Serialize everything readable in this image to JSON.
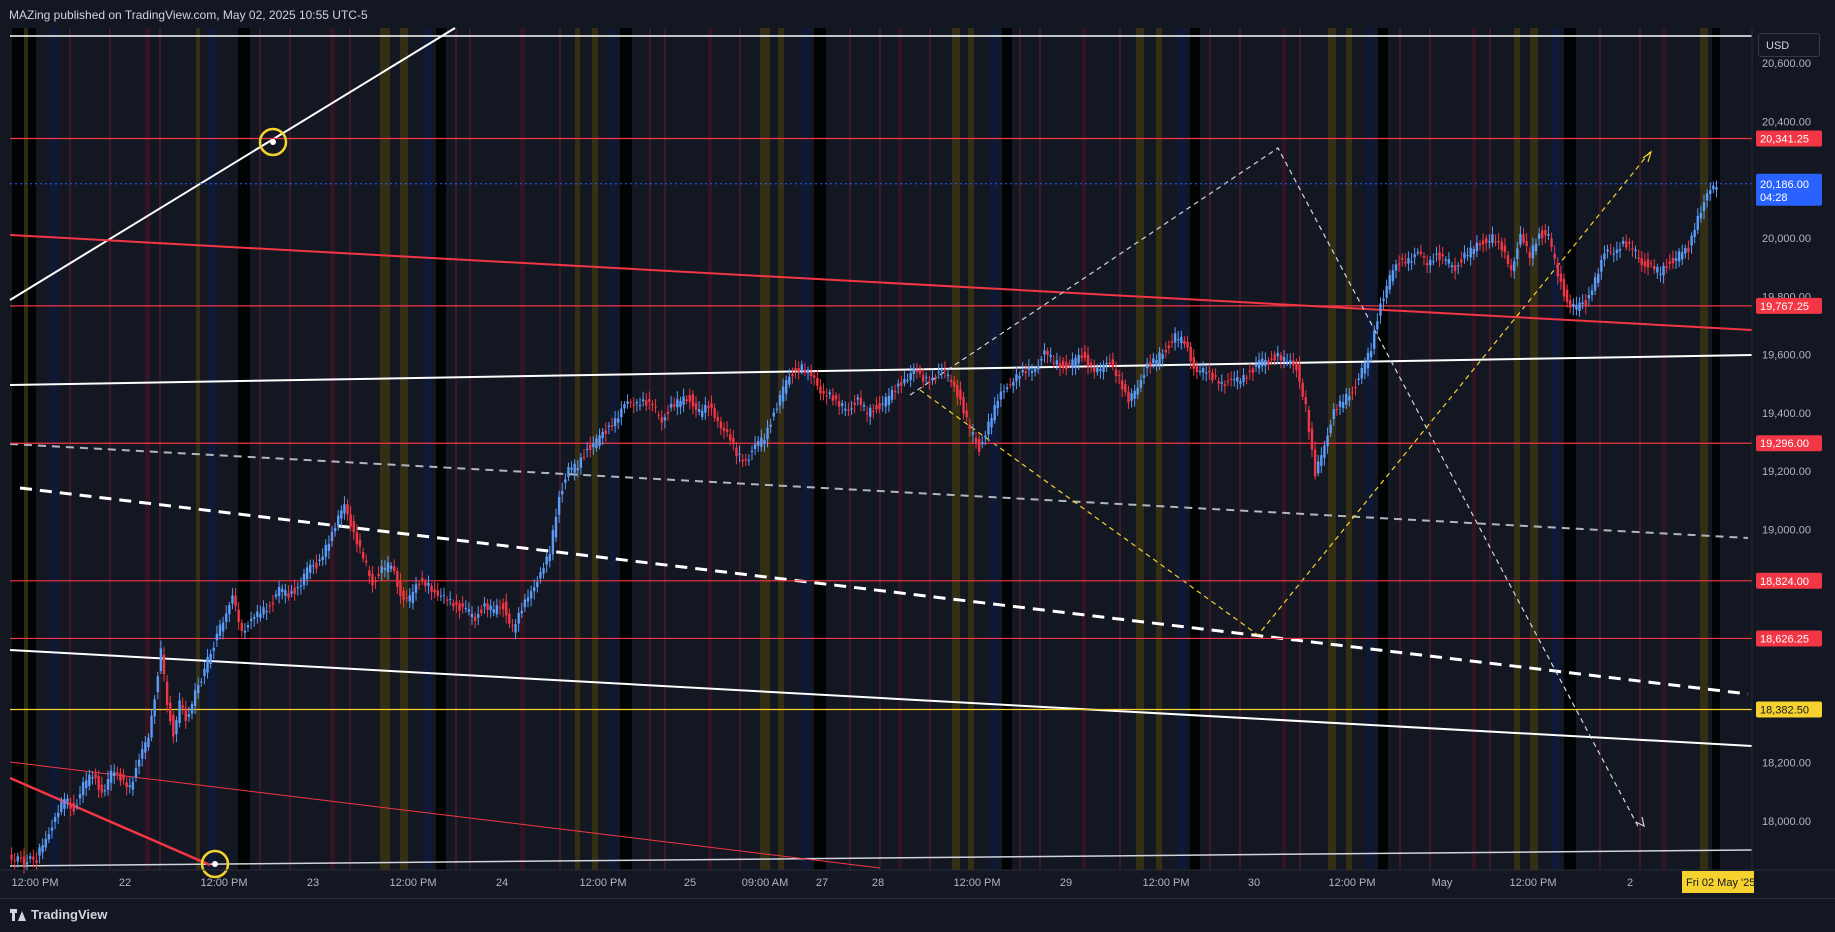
{
  "header": {
    "published": "MAZing published on TradingView.com, May 02, 2025 10:55 UTC-5"
  },
  "brand": {
    "name": "TradingView",
    "icon": "tradingview-logo-icon"
  },
  "price_axis": {
    "currency": "USD"
  },
  "colors": {
    "bg": "#131722",
    "up": "#5b9cf6",
    "down": "#f23645",
    "level_red": "#f23645",
    "level_yellow": "#f5d22d",
    "current": "#2962ff"
  },
  "chart_data": {
    "type": "candlestick",
    "symbol_note": "Futures price chart",
    "ylim": [
      17820,
      20740
    ],
    "y_ticks": [
      {
        "value": 18000,
        "label": "18,000.00"
      },
      {
        "value": 18200,
        "label": "18,200.00"
      },
      {
        "value": 19000,
        "label": "19,000.00"
      },
      {
        "value": 19200,
        "label": "19,200.00"
      },
      {
        "value": 19400,
        "label": "19,400.00"
      },
      {
        "value": 19600,
        "label": "19,600.00"
      },
      {
        "value": 19800,
        "label": "19,800.00"
      },
      {
        "value": 20000,
        "label": "20,000.00"
      },
      {
        "value": 20400,
        "label": "20,400.00"
      },
      {
        "value": 20600,
        "label": "20,600.00"
      }
    ],
    "x_ticks": [
      "12:00 PM",
      "22",
      "12:00 PM",
      "23",
      "12:00 PM",
      "24",
      "12:00 PM",
      "25",
      "09:00 AM",
      "27",
      "28",
      "12:00 PM",
      "29",
      "12:00 PM",
      "30",
      "12:00 PM",
      "May",
      "12:00 PM",
      "2"
    ],
    "time_cursor_label": "Fri 02 May '25",
    "levels": [
      {
        "value": 20341.25,
        "label": "20,341.25",
        "color": "red"
      },
      {
        "value": 19767.25,
        "label": "19,767.25",
        "color": "red"
      },
      {
        "value": 19296.0,
        "label": "19,296.00",
        "color": "red"
      },
      {
        "value": 18824.0,
        "label": "18,824.00",
        "color": "red"
      },
      {
        "value": 18626.25,
        "label": "18,626.25",
        "color": "red"
      },
      {
        "value": 18382.5,
        "label": "18,382.50",
        "color": "yellow"
      }
    ],
    "current_price": {
      "value": 20186.0,
      "label": "20,186.00",
      "countdown": "04:28"
    },
    "price_path": [
      [
        0.0,
        17880
      ],
      [
        0.05,
        17860
      ],
      [
        0.09,
        17870
      ],
      [
        0.12,
        17950
      ],
      [
        0.15,
        18000
      ],
      [
        0.18,
        18080
      ],
      [
        0.21,
        18040
      ],
      [
        0.24,
        18120
      ],
      [
        0.27,
        18160
      ],
      [
        0.3,
        18100
      ],
      [
        0.33,
        18160
      ],
      [
        0.36,
        18150
      ],
      [
        0.39,
        18120
      ],
      [
        0.42,
        18200
      ],
      [
        0.45,
        18300
      ],
      [
        0.47,
        18430
      ],
      [
        0.49,
        18580
      ],
      [
        0.51,
        18400
      ],
      [
        0.53,
        18300
      ],
      [
        0.55,
        18400
      ],
      [
        0.57,
        18350
      ],
      [
        0.7,
        18720
      ],
      [
        0.72,
        18760
      ],
      [
        0.75,
        18660
      ],
      [
        0.78,
        18680
      ],
      [
        0.81,
        18720
      ],
      [
        0.84,
        18740
      ],
      [
        0.87,
        18790
      ],
      [
        0.9,
        18780
      ],
      [
        0.93,
        18800
      ],
      [
        0.96,
        18860
      ],
      [
        0.99,
        18880
      ],
      [
        1.02,
        18940
      ],
      [
        1.05,
        19000
      ],
      [
        1.08,
        19100
      ],
      [
        1.11,
        18980
      ],
      [
        1.14,
        18900
      ],
      [
        1.17,
        18820
      ],
      [
        1.2,
        18860
      ],
      [
        1.23,
        18880
      ],
      [
        1.26,
        18780
      ],
      [
        1.29,
        18760
      ],
      [
        1.32,
        18820
      ],
      [
        1.35,
        18820
      ],
      [
        1.38,
        18760
      ],
      [
        1.41,
        18770
      ],
      [
        1.44,
        18740
      ],
      [
        1.47,
        18720
      ],
      [
        1.5,
        18700
      ],
      [
        1.53,
        18740
      ],
      [
        1.56,
        18720
      ],
      [
        1.59,
        18740
      ],
      [
        1.62,
        18660
      ],
      [
        1.65,
        18720
      ],
      [
        1.68,
        18800
      ],
      [
        1.71,
        18840
      ],
      [
        1.74,
        18920
      ],
      [
        1.77,
        19120
      ],
      [
        1.8,
        19200
      ],
      [
        1.83,
        19220
      ],
      [
        1.86,
        19280
      ],
      [
        1.89,
        19300
      ],
      [
        1.92,
        19340
      ],
      [
        1.95,
        19380
      ],
      [
        1.98,
        19420
      ],
      [
        2.01,
        19440
      ],
      [
        2.04,
        19440
      ],
      [
        2.07,
        19420
      ],
      [
        2.1,
        19380
      ],
      [
        2.13,
        19420
      ],
      [
        2.16,
        19440
      ],
      [
        2.19,
        19450
      ],
      [
        2.22,
        19400
      ],
      [
        2.25,
        19420
      ],
      [
        2.28,
        19380
      ],
      [
        2.31,
        19320
      ],
      [
        2.34,
        19260
      ],
      [
        2.37,
        19240
      ],
      [
        2.4,
        19280
      ],
      [
        2.43,
        19320
      ],
      [
        2.46,
        19400
      ],
      [
        2.49,
        19480
      ],
      [
        2.52,
        19540
      ],
      [
        2.55,
        19560
      ],
      [
        2.58,
        19520
      ],
      [
        2.61,
        19480
      ],
      [
        2.64,
        19460
      ],
      [
        2.67,
        19420
      ],
      [
        2.7,
        19420
      ],
      [
        2.73,
        19440
      ],
      [
        2.76,
        19400
      ],
      [
        2.79,
        19420
      ],
      [
        2.82,
        19440
      ],
      [
        2.85,
        19480
      ],
      [
        2.88,
        19520
      ],
      [
        2.91,
        19540
      ],
      [
        2.94,
        19520
      ],
      [
        2.97,
        19520
      ],
      [
        3.0,
        19540
      ],
      [
        3.03,
        19520
      ],
      [
        3.06,
        19440
      ],
      [
        3.09,
        19340
      ],
      [
        3.12,
        19280
      ],
      [
        3.15,
        19360
      ],
      [
        3.18,
        19440
      ],
      [
        3.21,
        19500
      ],
      [
        3.24,
        19520
      ],
      [
        3.27,
        19540
      ],
      [
        3.3,
        19560
      ],
      [
        3.33,
        19600
      ],
      [
        3.36,
        19580
      ],
      [
        3.39,
        19560
      ],
      [
        3.42,
        19570
      ],
      [
        3.45,
        19600
      ],
      [
        3.48,
        19560
      ],
      [
        3.51,
        19540
      ],
      [
        3.54,
        19580
      ],
      [
        3.57,
        19520
      ],
      [
        3.6,
        19430
      ],
      [
        3.63,
        19500
      ],
      [
        3.66,
        19560
      ],
      [
        3.69,
        19580
      ],
      [
        3.72,
        19620
      ],
      [
        3.75,
        19660
      ],
      [
        3.78,
        19640
      ],
      [
        3.81,
        19560
      ],
      [
        3.84,
        19540
      ],
      [
        3.87,
        19520
      ],
      [
        3.9,
        19510
      ],
      [
        3.93,
        19500
      ],
      [
        3.96,
        19520
      ],
      [
        3.99,
        19540
      ],
      [
        4.02,
        19570
      ],
      [
        4.05,
        19580
      ],
      [
        4.08,
        19600
      ],
      [
        4.11,
        19570
      ],
      [
        4.14,
        19560
      ],
      [
        4.17,
        19420
      ],
      [
        4.2,
        19180
      ],
      [
        4.23,
        19300
      ],
      [
        4.26,
        19400
      ],
      [
        4.29,
        19440
      ],
      [
        4.32,
        19480
      ],
      [
        4.35,
        19540
      ],
      [
        4.38,
        19620
      ],
      [
        4.41,
        19780
      ],
      [
        4.44,
        19860
      ],
      [
        4.47,
        19920
      ],
      [
        4.5,
        19930
      ],
      [
        4.53,
        19940
      ],
      [
        4.56,
        19920
      ],
      [
        4.59,
        19940
      ],
      [
        4.62,
        19920
      ],
      [
        4.65,
        19900
      ],
      [
        4.68,
        19940
      ],
      [
        4.71,
        19960
      ],
      [
        4.74,
        19990
      ],
      [
        4.77,
        20000
      ],
      [
        4.8,
        19960
      ],
      [
        4.83,
        19900
      ],
      [
        4.86,
        20000
      ],
      [
        4.89,
        19940
      ],
      [
        4.92,
        20020
      ],
      [
        4.95,
        20000
      ],
      [
        4.98,
        19880
      ],
      [
        5.01,
        19780
      ],
      [
        5.04,
        19760
      ],
      [
        5.07,
        19780
      ],
      [
        5.1,
        19860
      ],
      [
        5.13,
        19940
      ],
      [
        5.16,
        19960
      ],
      [
        5.19,
        19980
      ],
      [
        5.22,
        19960
      ],
      [
        5.25,
        19920
      ],
      [
        5.28,
        19900
      ],
      [
        5.31,
        19880
      ],
      [
        5.34,
        19920
      ],
      [
        5.37,
        19940
      ],
      [
        5.4,
        19960
      ],
      [
        5.43,
        20080
      ],
      [
        5.46,
        20140
      ],
      [
        5.49,
        20186
      ]
    ]
  }
}
